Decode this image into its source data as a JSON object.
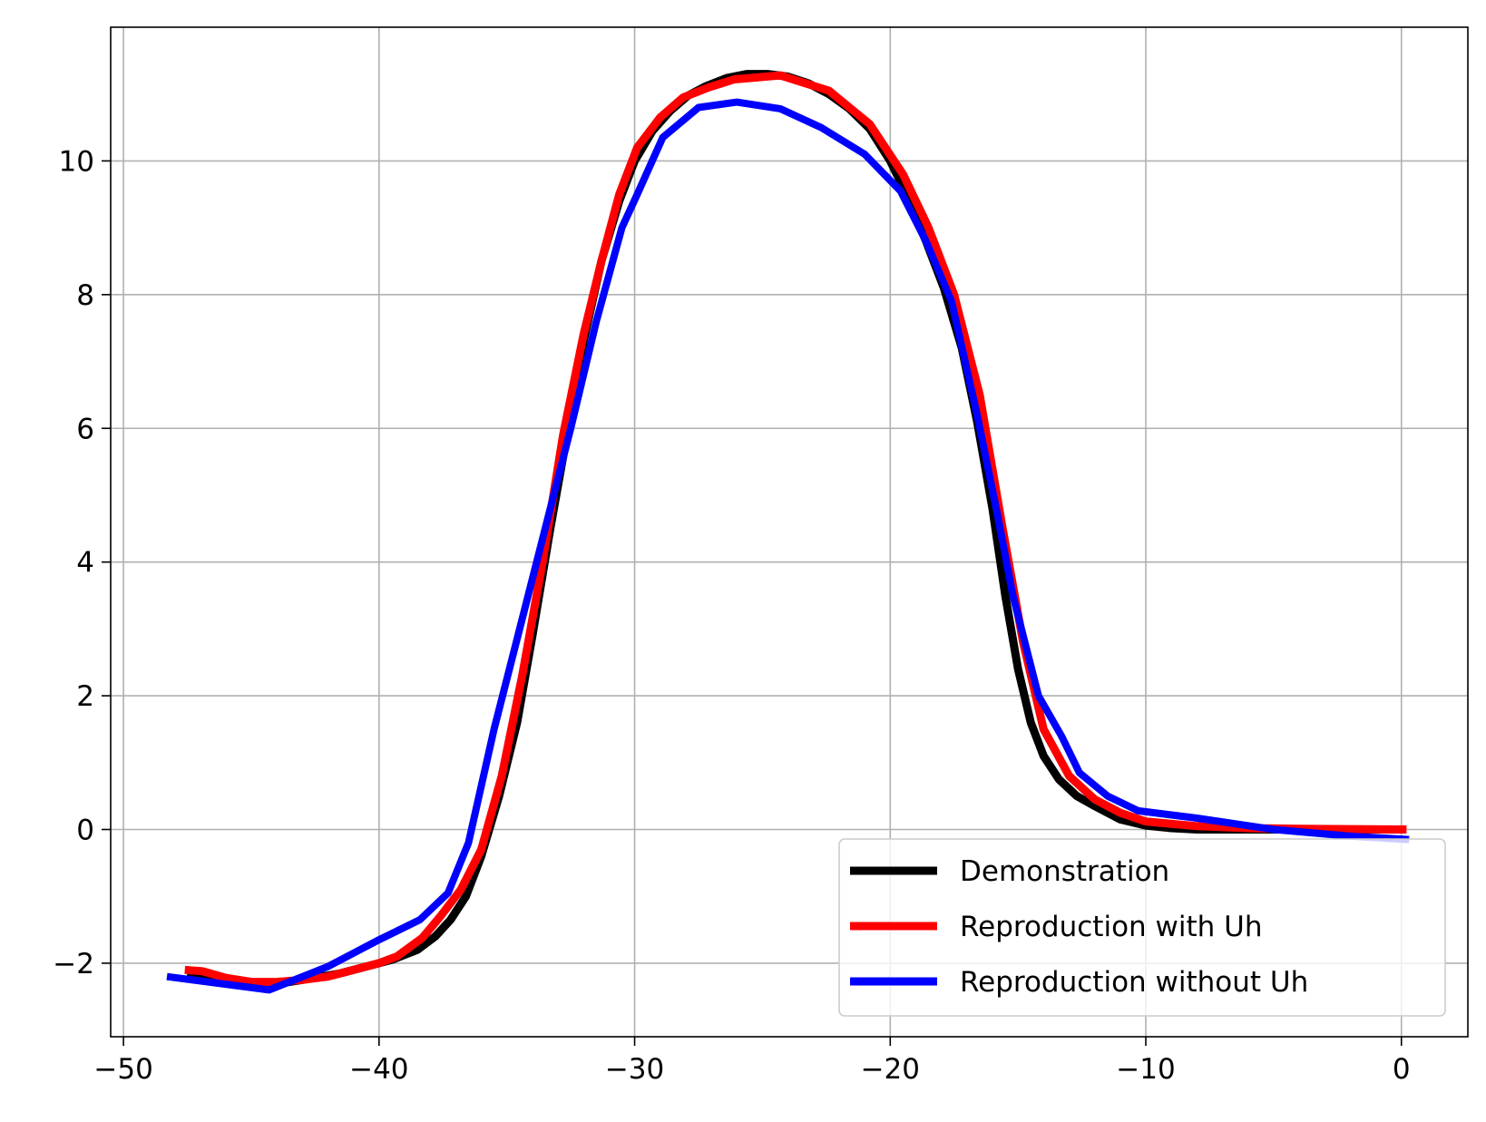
{
  "chart_data": {
    "type": "line",
    "title": "",
    "xlabel": "",
    "ylabel": "",
    "xlim": [
      -50.5,
      2.6
    ],
    "ylim": [
      -3.1,
      12.0
    ],
    "xticks": [
      -50,
      -40,
      -30,
      -20,
      -10,
      0
    ],
    "yticks": [
      -2,
      0,
      2,
      4,
      6,
      8,
      10
    ],
    "xtick_labels": [
      "−50",
      "−40",
      "−30",
      "−20",
      "−10",
      "0"
    ],
    "ytick_labels": [
      "−2",
      "0",
      "2",
      "4",
      "6",
      "8",
      "10"
    ],
    "grid": true,
    "legend_position": "lower-right",
    "series": [
      {
        "name": "Demonstration",
        "color": "#000000",
        "points": [
          [
            -47.5,
            -2.15
          ],
          [
            -46.5,
            -2.22
          ],
          [
            -45.5,
            -2.28
          ],
          [
            -44.5,
            -2.3
          ],
          [
            -43.5,
            -2.28
          ],
          [
            -42.5,
            -2.22
          ],
          [
            -41.5,
            -2.15
          ],
          [
            -40.5,
            -2.05
          ],
          [
            -39.5,
            -1.95
          ],
          [
            -38.5,
            -1.8
          ],
          [
            -37.8,
            -1.6
          ],
          [
            -37.2,
            -1.35
          ],
          [
            -36.6,
            -1.0
          ],
          [
            -36.0,
            -0.4
          ],
          [
            -35.3,
            0.5
          ],
          [
            -34.6,
            1.6
          ],
          [
            -34.0,
            2.9
          ],
          [
            -33.3,
            4.5
          ],
          [
            -32.6,
            6.0
          ],
          [
            -32.0,
            7.3
          ],
          [
            -31.3,
            8.5
          ],
          [
            -30.6,
            9.4
          ],
          [
            -30.0,
            10.0
          ],
          [
            -29.3,
            10.45
          ],
          [
            -28.6,
            10.75
          ],
          [
            -27.9,
            10.98
          ],
          [
            -27.2,
            11.12
          ],
          [
            -26.4,
            11.24
          ],
          [
            -25.6,
            11.3
          ],
          [
            -24.8,
            11.3
          ],
          [
            -24.0,
            11.26
          ],
          [
            -23.2,
            11.16
          ],
          [
            -22.4,
            11.0
          ],
          [
            -21.6,
            10.78
          ],
          [
            -20.8,
            10.48
          ],
          [
            -20.0,
            10.0
          ],
          [
            -19.3,
            9.45
          ],
          [
            -18.6,
            8.8
          ],
          [
            -17.9,
            8.1
          ],
          [
            -17.2,
            7.2
          ],
          [
            -16.6,
            6.1
          ],
          [
            -16.0,
            4.8
          ],
          [
            -15.5,
            3.5
          ],
          [
            -15.0,
            2.4
          ],
          [
            -14.5,
            1.6
          ],
          [
            -14.0,
            1.1
          ],
          [
            -13.4,
            0.75
          ],
          [
            -12.7,
            0.5
          ],
          [
            -12.0,
            0.35
          ],
          [
            -11.0,
            0.15
          ],
          [
            -10.0,
            0.06
          ],
          [
            -9.0,
            0.02
          ],
          [
            -8.0,
            0.0
          ],
          [
            -6.0,
            0.0
          ],
          [
            -4.0,
            0.0
          ],
          [
            -2.0,
            0.0
          ],
          [
            0.0,
            0.0
          ]
        ]
      },
      {
        "name": "Reproduction with Uh",
        "color": "#ff0000",
        "points": [
          [
            -47.6,
            -2.1
          ],
          [
            -46.9,
            -2.12
          ],
          [
            -46.0,
            -2.22
          ],
          [
            -45.0,
            -2.28
          ],
          [
            -44.0,
            -2.28
          ],
          [
            -43.0,
            -2.25
          ],
          [
            -42.0,
            -2.2
          ],
          [
            -41.0,
            -2.1
          ],
          [
            -40.0,
            -2.0
          ],
          [
            -39.3,
            -1.9
          ],
          [
            -38.3,
            -1.62
          ],
          [
            -37.6,
            -1.3
          ],
          [
            -36.8,
            -0.9
          ],
          [
            -36.0,
            -0.3
          ],
          [
            -35.2,
            0.8
          ],
          [
            -34.4,
            2.3
          ],
          [
            -33.6,
            4.0
          ],
          [
            -32.8,
            5.9
          ],
          [
            -32.0,
            7.4
          ],
          [
            -31.3,
            8.5
          ],
          [
            -30.6,
            9.5
          ],
          [
            -29.9,
            10.2
          ],
          [
            -29.0,
            10.65
          ],
          [
            -28.1,
            10.95
          ],
          [
            -27.1,
            11.1
          ],
          [
            -26.1,
            11.22
          ],
          [
            -24.3,
            11.28
          ],
          [
            -22.4,
            11.05
          ],
          [
            -20.8,
            10.55
          ],
          [
            -19.5,
            9.8
          ],
          [
            -18.5,
            9.0
          ],
          [
            -17.5,
            8.0
          ],
          [
            -16.5,
            6.5
          ],
          [
            -15.6,
            4.5
          ],
          [
            -14.8,
            2.8
          ],
          [
            -14.0,
            1.5
          ],
          [
            -13.0,
            0.8
          ],
          [
            -12.0,
            0.45
          ],
          [
            -11.0,
            0.25
          ],
          [
            -10.0,
            0.12
          ],
          [
            -8.0,
            0.05
          ],
          [
            -6.0,
            0.02
          ],
          [
            -4.0,
            0.01
          ],
          [
            0.2,
            0.0
          ]
        ]
      },
      {
        "name": "Reproduction without Uh",
        "color": "#0000ff",
        "points": [
          [
            -48.3,
            -2.2
          ],
          [
            -46.3,
            -2.3
          ],
          [
            -44.3,
            -2.4
          ],
          [
            -42.0,
            -2.05
          ],
          [
            -40.0,
            -1.65
          ],
          [
            -38.4,
            -1.35
          ],
          [
            -37.3,
            -0.95
          ],
          [
            -36.5,
            -0.2
          ],
          [
            -35.5,
            1.5
          ],
          [
            -34.5,
            3.0
          ],
          [
            -33.5,
            4.5
          ],
          [
            -32.5,
            6.0
          ],
          [
            -31.5,
            7.6
          ],
          [
            -30.5,
            9.0
          ],
          [
            -29.9,
            9.5
          ],
          [
            -28.9,
            10.35
          ],
          [
            -27.5,
            10.8
          ],
          [
            -26.0,
            10.88
          ],
          [
            -24.3,
            10.78
          ],
          [
            -22.7,
            10.5
          ],
          [
            -21.0,
            10.1
          ],
          [
            -19.6,
            9.55
          ],
          [
            -18.6,
            8.8
          ],
          [
            -17.6,
            7.9
          ],
          [
            -16.6,
            6.2
          ],
          [
            -15.8,
            4.7
          ],
          [
            -15.2,
            3.5
          ],
          [
            -14.2,
            2.0
          ],
          [
            -13.3,
            1.4
          ],
          [
            -12.6,
            0.85
          ],
          [
            -11.5,
            0.5
          ],
          [
            -10.3,
            0.28
          ],
          [
            -8.0,
            0.17
          ],
          [
            -5.0,
            0.0
          ],
          [
            -2.0,
            -0.1
          ],
          [
            0.3,
            -0.15
          ]
        ]
      }
    ]
  }
}
